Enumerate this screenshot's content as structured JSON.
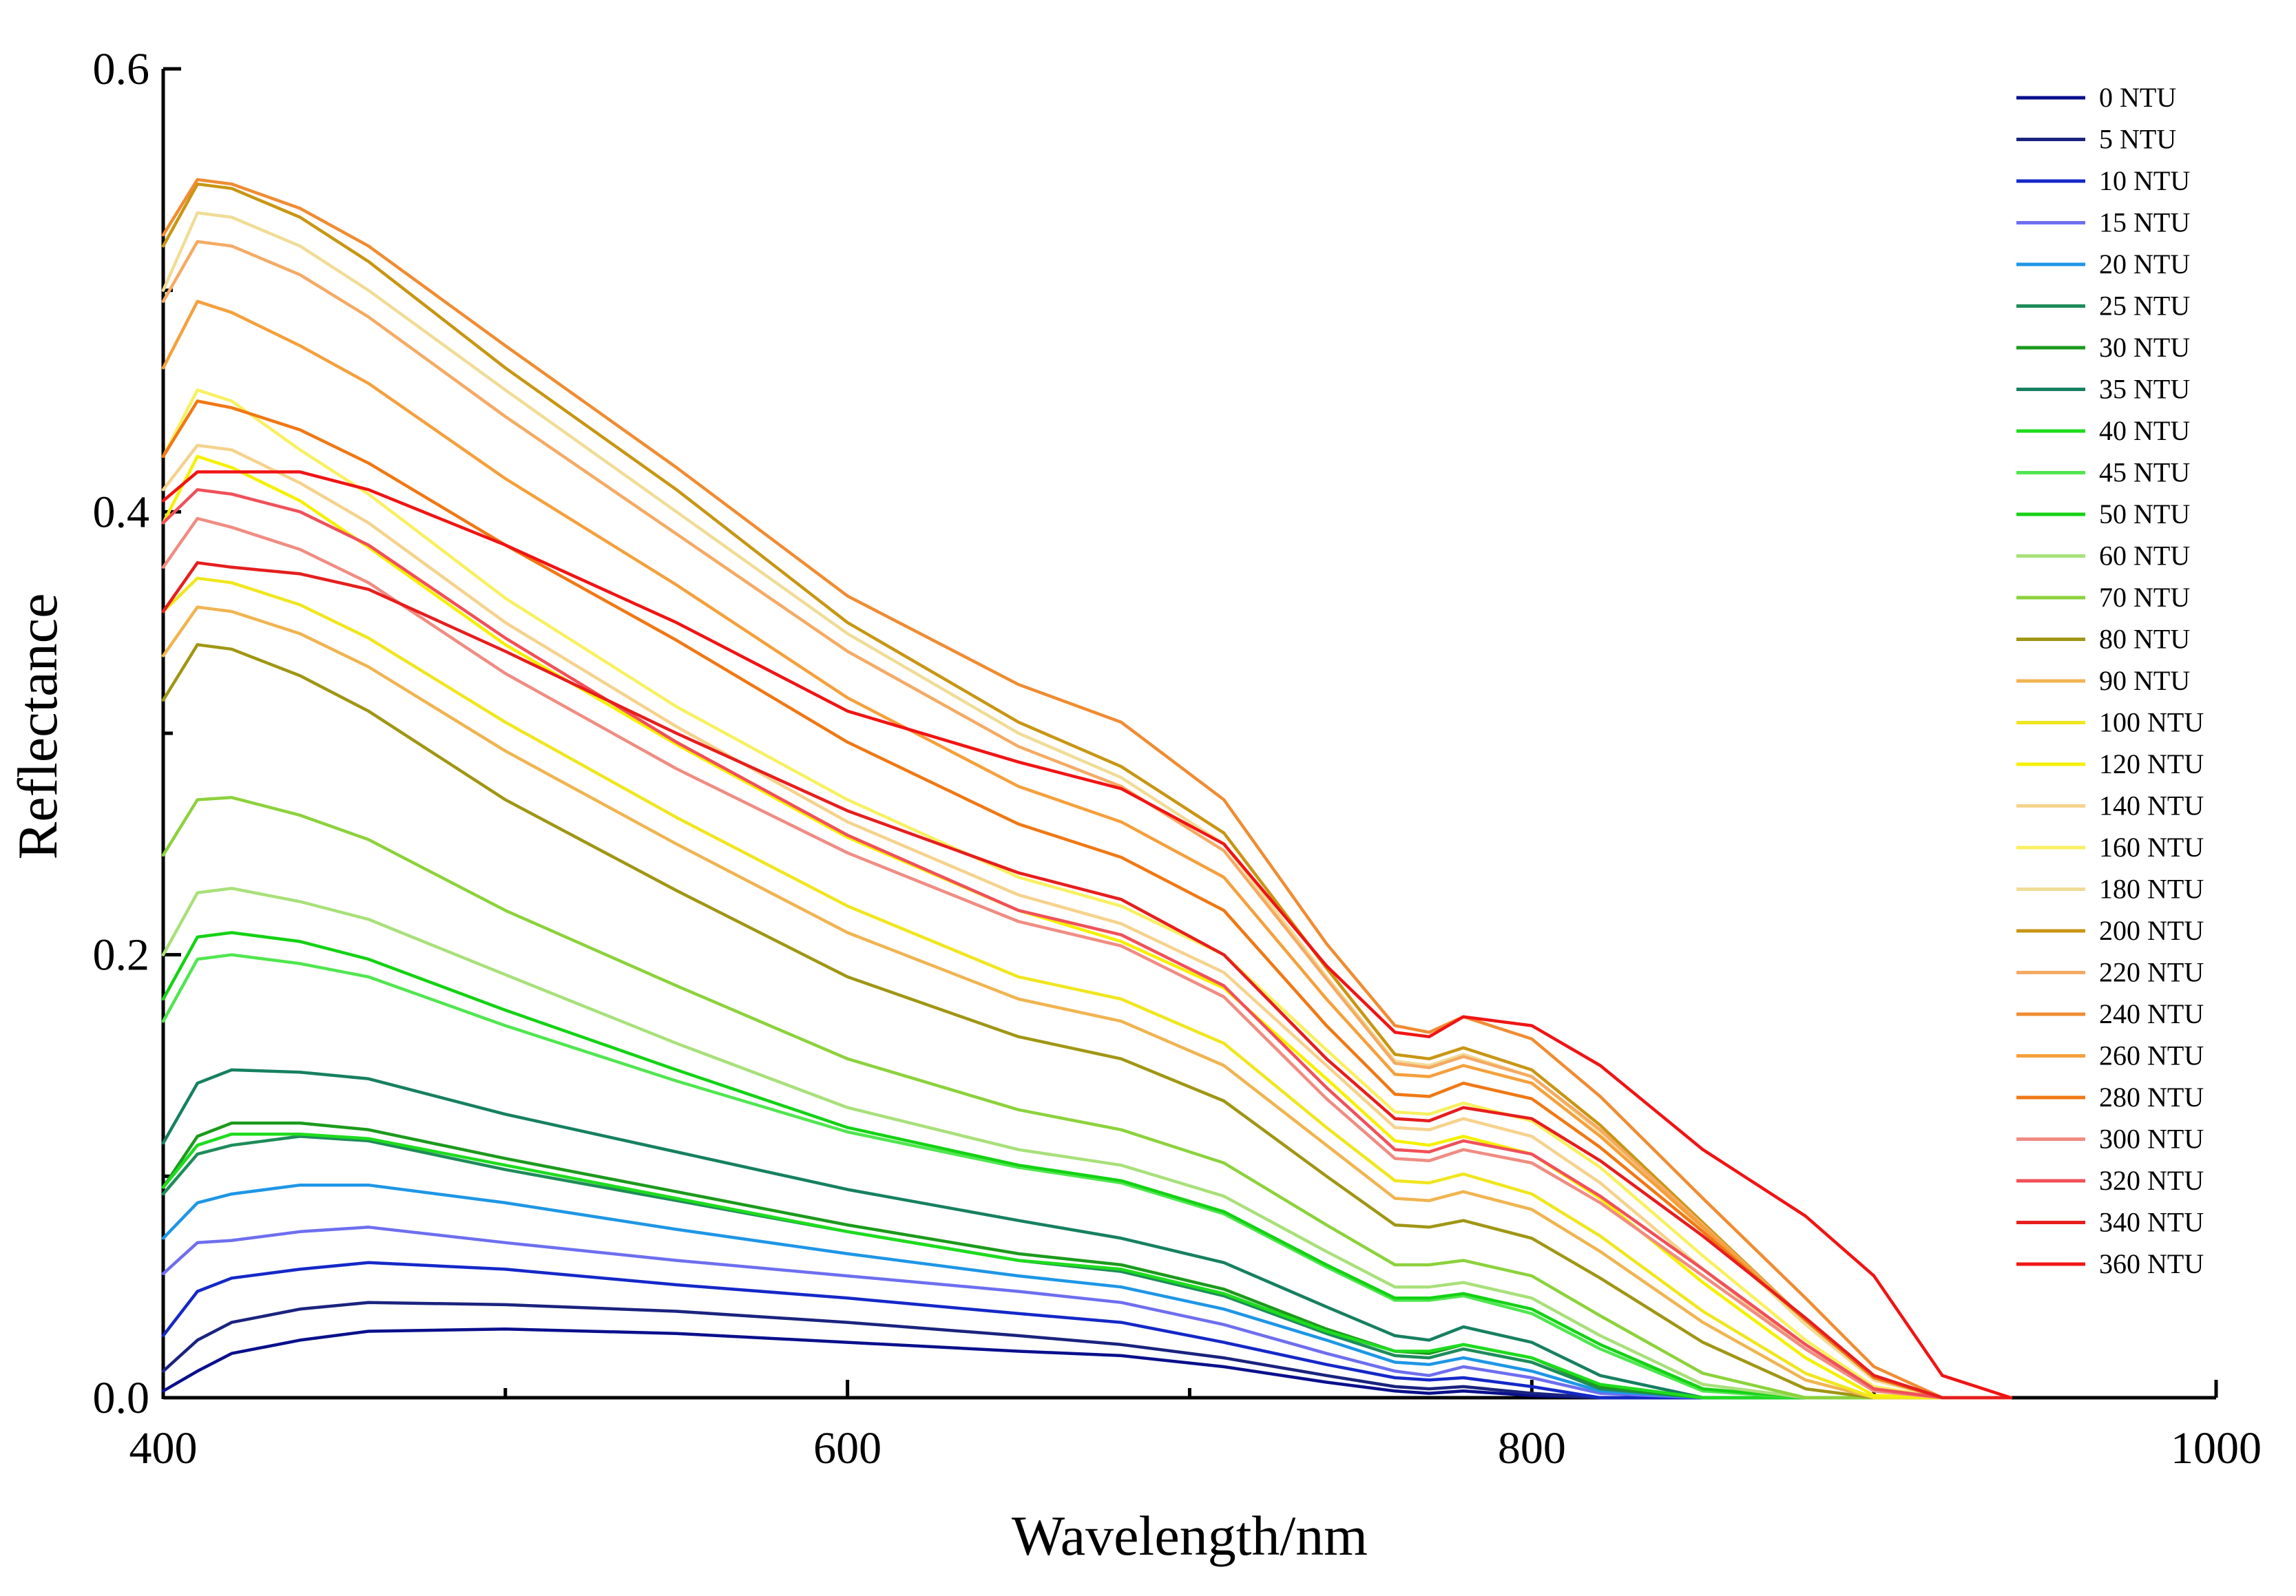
{
  "chart_data": {
    "type": "line",
    "title": "",
    "xlabel": "Wavelength/nm",
    "ylabel": "Reflectance",
    "xlim": [
      400,
      1000
    ],
    "ylim": [
      0,
      0.6
    ],
    "x_ticks": [
      "400",
      "600",
      "800",
      "1000"
    ],
    "x_tick_values": [
      400,
      600,
      800,
      1000
    ],
    "y_ticks": [
      "0.0",
      "0.2",
      "0.4",
      "0.6"
    ],
    "y_tick_values": [
      0.0,
      0.2,
      0.4,
      0.6
    ],
    "grid": false,
    "legend_position": "top-right",
    "x": [
      400,
      410,
      420,
      440,
      460,
      500,
      550,
      600,
      650,
      680,
      710,
      740,
      760,
      770,
      780,
      800,
      820,
      850,
      880,
      900,
      920,
      940
    ],
    "series": [
      {
        "name": "0 NTU",
        "color": "#0a0f8c",
        "values": [
          0.003,
          0.012,
          0.02,
          0.026,
          0.03,
          0.031,
          0.029,
          0.025,
          0.021,
          0.019,
          0.014,
          0.007,
          0.003,
          0.002,
          0.003,
          0.001,
          0.0,
          0.0,
          0.0,
          0.0,
          0.0,
          0.0
        ]
      },
      {
        "name": "5 NTU",
        "color": "#1a237e",
        "values": [
          0.012,
          0.026,
          0.034,
          0.04,
          0.043,
          0.042,
          0.039,
          0.034,
          0.028,
          0.024,
          0.018,
          0.01,
          0.005,
          0.004,
          0.005,
          0.002,
          0.0,
          0.0,
          0.0,
          0.0,
          0.0,
          0.0
        ]
      },
      {
        "name": "10 NTU",
        "color": "#1428c8",
        "values": [
          0.028,
          0.048,
          0.054,
          0.058,
          0.061,
          0.058,
          0.051,
          0.045,
          0.038,
          0.034,
          0.025,
          0.015,
          0.009,
          0.008,
          0.009,
          0.005,
          0.0,
          0.0,
          0.0,
          0.0,
          0.0,
          0.0
        ]
      },
      {
        "name": "15 NTU",
        "color": "#6e6ef0",
        "values": [
          0.056,
          0.07,
          0.071,
          0.075,
          0.077,
          0.07,
          0.062,
          0.055,
          0.048,
          0.043,
          0.033,
          0.02,
          0.012,
          0.01,
          0.014,
          0.009,
          0.002,
          0.0,
          0.0,
          0.0,
          0.0,
          0.0
        ]
      },
      {
        "name": "20 NTU",
        "color": "#1e96e6",
        "values": [
          0.072,
          0.088,
          0.092,
          0.096,
          0.096,
          0.088,
          0.076,
          0.065,
          0.055,
          0.05,
          0.04,
          0.026,
          0.016,
          0.015,
          0.018,
          0.012,
          0.003,
          0.0,
          0.0,
          0.0,
          0.0,
          0.0
        ]
      },
      {
        "name": "25 NTU",
        "color": "#1e8c5a",
        "values": [
          0.092,
          0.11,
          0.114,
          0.118,
          0.116,
          0.103,
          0.089,
          0.075,
          0.062,
          0.057,
          0.046,
          0.029,
          0.019,
          0.018,
          0.022,
          0.016,
          0.004,
          0.0,
          0.0,
          0.0,
          0.0,
          0.0
        ]
      },
      {
        "name": "30 NTU",
        "color": "#1c9a1c",
        "values": [
          0.095,
          0.118,
          0.124,
          0.124,
          0.121,
          0.108,
          0.093,
          0.078,
          0.065,
          0.06,
          0.049,
          0.031,
          0.021,
          0.02,
          0.024,
          0.018,
          0.005,
          0.0,
          0.0,
          0.0,
          0.0,
          0.0
        ]
      },
      {
        "name": "35 NTU",
        "color": "#168060",
        "values": [
          0.115,
          0.142,
          0.148,
          0.147,
          0.144,
          0.128,
          0.111,
          0.094,
          0.08,
          0.072,
          0.061,
          0.041,
          0.028,
          0.026,
          0.032,
          0.025,
          0.01,
          0.0,
          0.0,
          0.0,
          0.0,
          0.0
        ]
      },
      {
        "name": "40 NTU",
        "color": "#1edc1e",
        "values": [
          0.095,
          0.114,
          0.119,
          0.119,
          0.117,
          0.105,
          0.09,
          0.075,
          0.062,
          0.058,
          0.047,
          0.03,
          0.021,
          0.021,
          0.024,
          0.018,
          0.006,
          0.0,
          0.0,
          0.0,
          0.0,
          0.0
        ]
      },
      {
        "name": "45 NTU",
        "color": "#50e650",
        "values": [
          0.17,
          0.198,
          0.2,
          0.196,
          0.19,
          0.168,
          0.143,
          0.12,
          0.104,
          0.097,
          0.083,
          0.059,
          0.044,
          0.044,
          0.046,
          0.038,
          0.022,
          0.003,
          0.0,
          0.0,
          0.0,
          0.0
        ]
      },
      {
        "name": "50 NTU",
        "color": "#14d214",
        "values": [
          0.18,
          0.208,
          0.21,
          0.206,
          0.198,
          0.175,
          0.148,
          0.122,
          0.105,
          0.098,
          0.084,
          0.06,
          0.045,
          0.045,
          0.047,
          0.04,
          0.024,
          0.004,
          0.0,
          0.0,
          0.0,
          0.0
        ]
      },
      {
        "name": "60 NTU",
        "color": "#a8e07a",
        "values": [
          0.2,
          0.228,
          0.23,
          0.224,
          0.216,
          0.191,
          0.16,
          0.131,
          0.112,
          0.105,
          0.091,
          0.066,
          0.05,
          0.05,
          0.052,
          0.045,
          0.028,
          0.006,
          0.0,
          0.0,
          0.0,
          0.0
        ]
      },
      {
        "name": "70 NTU",
        "color": "#8cd23c",
        "values": [
          0.245,
          0.27,
          0.271,
          0.263,
          0.252,
          0.22,
          0.186,
          0.153,
          0.13,
          0.121,
          0.106,
          0.078,
          0.06,
          0.06,
          0.062,
          0.055,
          0.037,
          0.011,
          0.0,
          0.0,
          0.0,
          0.0
        ]
      },
      {
        "name": "80 NTU",
        "color": "#a09614",
        "values": [
          0.315,
          0.34,
          0.338,
          0.326,
          0.31,
          0.27,
          0.229,
          0.19,
          0.163,
          0.153,
          0.134,
          0.1,
          0.078,
          0.077,
          0.08,
          0.072,
          0.054,
          0.025,
          0.004,
          0.0,
          0.0,
          0.0
        ]
      },
      {
        "name": "90 NTU",
        "color": "#f0b450",
        "values": [
          0.335,
          0.357,
          0.355,
          0.345,
          0.33,
          0.292,
          0.25,
          0.21,
          0.18,
          0.17,
          0.15,
          0.114,
          0.09,
          0.089,
          0.093,
          0.085,
          0.066,
          0.034,
          0.008,
          0.0,
          0.0,
          0.0
        ]
      },
      {
        "name": "100 NTU",
        "color": "#f0e61e",
        "values": [
          0.355,
          0.37,
          0.368,
          0.358,
          0.343,
          0.305,
          0.262,
          0.222,
          0.19,
          0.18,
          0.16,
          0.122,
          0.098,
          0.097,
          0.101,
          0.092,
          0.073,
          0.039,
          0.011,
          0.0,
          0.0,
          0.0
        ]
      },
      {
        "name": "120 NTU",
        "color": "#f5f000",
        "values": [
          0.395,
          0.425,
          0.42,
          0.405,
          0.384,
          0.34,
          0.295,
          0.253,
          0.22,
          0.206,
          0.185,
          0.144,
          0.116,
          0.114,
          0.118,
          0.11,
          0.09,
          0.052,
          0.018,
          0.001,
          0.0,
          0.0
        ]
      },
      {
        "name": "140 NTU",
        "color": "#f5d28c",
        "values": [
          0.41,
          0.43,
          0.428,
          0.413,
          0.395,
          0.35,
          0.303,
          0.26,
          0.227,
          0.214,
          0.192,
          0.15,
          0.122,
          0.121,
          0.126,
          0.118,
          0.097,
          0.058,
          0.022,
          0.003,
          0.0,
          0.0
        ]
      },
      {
        "name": "160 NTU",
        "color": "#f8f060",
        "values": [
          0.425,
          0.455,
          0.45,
          0.428,
          0.408,
          0.361,
          0.312,
          0.27,
          0.235,
          0.222,
          0.2,
          0.157,
          0.129,
          0.128,
          0.133,
          0.125,
          0.104,
          0.064,
          0.026,
          0.005,
          0.0,
          0.0
        ]
      },
      {
        "name": "180 NTU",
        "color": "#f0dc96",
        "values": [
          0.5,
          0.535,
          0.533,
          0.52,
          0.5,
          0.455,
          0.4,
          0.345,
          0.3,
          0.28,
          0.25,
          0.19,
          0.152,
          0.15,
          0.155,
          0.145,
          0.12,
          0.076,
          0.033,
          0.008,
          0.0,
          0.0
        ]
      },
      {
        "name": "200 NTU",
        "color": "#c89614",
        "values": [
          0.52,
          0.548,
          0.546,
          0.533,
          0.513,
          0.465,
          0.41,
          0.35,
          0.305,
          0.285,
          0.255,
          0.194,
          0.155,
          0.153,
          0.158,
          0.148,
          0.123,
          0.079,
          0.035,
          0.009,
          0.0,
          0.0
        ]
      },
      {
        "name": "220 NTU",
        "color": "#f5aa64",
        "values": [
          0.495,
          0.522,
          0.52,
          0.507,
          0.488,
          0.443,
          0.39,
          0.337,
          0.294,
          0.276,
          0.247,
          0.189,
          0.151,
          0.149,
          0.154,
          0.145,
          0.121,
          0.078,
          0.035,
          0.009,
          0.0,
          0.0
        ]
      },
      {
        "name": "240 NTU",
        "color": "#f08c32",
        "values": [
          0.525,
          0.55,
          0.548,
          0.537,
          0.52,
          0.475,
          0.42,
          0.362,
          0.322,
          0.305,
          0.27,
          0.205,
          0.168,
          0.165,
          0.172,
          0.162,
          0.136,
          0.09,
          0.045,
          0.014,
          0.0,
          0.0
        ]
      },
      {
        "name": "260 NTU",
        "color": "#f5a03c",
        "values": [
          0.465,
          0.495,
          0.49,
          0.475,
          0.458,
          0.415,
          0.367,
          0.316,
          0.276,
          0.26,
          0.235,
          0.18,
          0.146,
          0.145,
          0.15,
          0.142,
          0.118,
          0.077,
          0.035,
          0.01,
          0.0,
          0.0
        ]
      },
      {
        "name": "280 NTU",
        "color": "#f07814",
        "values": [
          0.425,
          0.45,
          0.447,
          0.437,
          0.422,
          0.385,
          0.342,
          0.296,
          0.259,
          0.244,
          0.22,
          0.168,
          0.137,
          0.136,
          0.142,
          0.135,
          0.113,
          0.075,
          0.035,
          0.009,
          0.0,
          0.0
        ]
      },
      {
        "name": "300 NTU",
        "color": "#f08c82",
        "values": [
          0.375,
          0.397,
          0.393,
          0.383,
          0.368,
          0.327,
          0.284,
          0.246,
          0.215,
          0.204,
          0.181,
          0.135,
          0.108,
          0.107,
          0.112,
          0.106,
          0.088,
          0.055,
          0.022,
          0.003,
          0.0,
          0.0
        ]
      },
      {
        "name": "320 NTU",
        "color": "#f0505a",
        "values": [
          0.395,
          0.41,
          0.408,
          0.4,
          0.385,
          0.343,
          0.296,
          0.254,
          0.22,
          0.209,
          0.186,
          0.14,
          0.112,
          0.111,
          0.116,
          0.11,
          0.091,
          0.058,
          0.024,
          0.004,
          0.0,
          0.0
        ]
      },
      {
        "name": "340 NTU",
        "color": "#e61e1e",
        "values": [
          0.355,
          0.377,
          0.375,
          0.372,
          0.365,
          0.337,
          0.3,
          0.265,
          0.237,
          0.225,
          0.2,
          0.153,
          0.126,
          0.125,
          0.131,
          0.126,
          0.107,
          0.073,
          0.036,
          0.01,
          0.0,
          0.0
        ]
      },
      {
        "name": "360 NTU",
        "color": "#f01414",
        "values": [
          0.405,
          0.418,
          0.418,
          0.418,
          0.41,
          0.385,
          0.35,
          0.31,
          0.287,
          0.275,
          0.25,
          0.195,
          0.165,
          0.163,
          0.172,
          0.168,
          0.15,
          0.112,
          0.082,
          0.055,
          0.01,
          0.0
        ]
      }
    ]
  }
}
